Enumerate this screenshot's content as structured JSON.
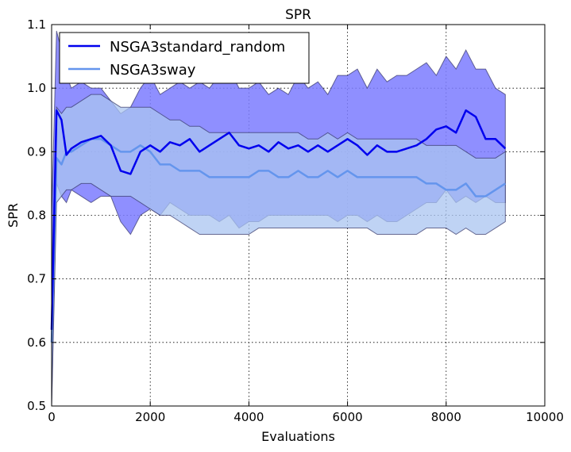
{
  "chart_data": {
    "type": "line",
    "title": "SPR",
    "xlabel": "Evaluations",
    "ylabel": "SPR",
    "xlim": [
      0,
      10000
    ],
    "ylim": [
      0.5,
      1.1
    ],
    "xticks": [
      0,
      2000,
      4000,
      6000,
      8000,
      10000
    ],
    "xtick_labels": [
      "0",
      "2000",
      "4000",
      "6000",
      "8000",
      "10000"
    ],
    "yticks": [
      0.5,
      0.6,
      0.7,
      0.8,
      0.9,
      1.0,
      1.1
    ],
    "ytick_labels": [
      "0.5",
      "0.6",
      "0.7",
      "0.8",
      "0.9",
      "1.0",
      "1.1"
    ],
    "grid": true,
    "legend_position": "top-left",
    "series": [
      {
        "name": "NSGA3standard_random",
        "color": "#0000ee",
        "band_color": "#7b7bff",
        "x": [
          0,
          100,
          200,
          300,
          400,
          600,
          800,
          1000,
          1200,
          1400,
          1600,
          1800,
          2000,
          2200,
          2400,
          2600,
          2800,
          3000,
          3200,
          3400,
          3600,
          3800,
          4000,
          4200,
          4400,
          4600,
          4800,
          5000,
          5200,
          5400,
          5600,
          5800,
          6000,
          6200,
          6400,
          6600,
          6800,
          7000,
          7200,
          7400,
          7600,
          7800,
          8000,
          8200,
          8400,
          8600,
          8800,
          9000,
          9200
        ],
        "y": [
          0.62,
          0.965,
          0.95,
          0.895,
          0.905,
          0.915,
          0.92,
          0.925,
          0.91,
          0.87,
          0.865,
          0.9,
          0.91,
          0.9,
          0.915,
          0.91,
          0.92,
          0.9,
          0.91,
          0.92,
          0.93,
          0.91,
          0.905,
          0.91,
          0.9,
          0.915,
          0.905,
          0.91,
          0.9,
          0.91,
          0.9,
          0.91,
          0.92,
          0.91,
          0.895,
          0.91,
          0.9,
          0.9,
          0.905,
          0.91,
          0.92,
          0.935,
          0.94,
          0.93,
          0.965,
          0.955,
          0.92,
          0.92,
          0.905
        ],
        "lower": [
          0.5,
          0.85,
          0.83,
          0.82,
          0.84,
          0.83,
          0.82,
          0.83,
          0.83,
          0.79,
          0.77,
          0.8,
          0.81,
          0.8,
          0.82,
          0.81,
          0.8,
          0.8,
          0.8,
          0.79,
          0.8,
          0.78,
          0.79,
          0.79,
          0.8,
          0.8,
          0.8,
          0.8,
          0.8,
          0.8,
          0.8,
          0.79,
          0.8,
          0.8,
          0.79,
          0.8,
          0.79,
          0.79,
          0.8,
          0.81,
          0.82,
          0.82,
          0.84,
          0.82,
          0.83,
          0.82,
          0.83,
          0.82,
          0.82
        ],
        "upper": [
          0.8,
          1.09,
          1.06,
          1.02,
          1.0,
          1.01,
          1.0,
          1.0,
          0.98,
          0.96,
          0.97,
          1.0,
          1.02,
          0.99,
          1.0,
          1.01,
          1.0,
          1.01,
          1.0,
          1.02,
          1.03,
          1.0,
          1.0,
          1.01,
          0.99,
          1.0,
          0.99,
          1.02,
          1.0,
          1.01,
          0.99,
          1.02,
          1.02,
          1.03,
          1.0,
          1.03,
          1.01,
          1.02,
          1.02,
          1.03,
          1.04,
          1.02,
          1.05,
          1.03,
          1.06,
          1.03,
          1.03,
          1.0,
          0.99
        ]
      },
      {
        "name": "NSGA3sway",
        "color": "#6495ed",
        "band_color": "#a9c4f0",
        "x": [
          0,
          100,
          200,
          300,
          400,
          600,
          800,
          1000,
          1200,
          1400,
          1600,
          1800,
          2000,
          2200,
          2400,
          2600,
          2800,
          3000,
          3200,
          3400,
          3600,
          3800,
          4000,
          4200,
          4400,
          4600,
          4800,
          5000,
          5200,
          5400,
          5600,
          5800,
          6000,
          6200,
          6400,
          6600,
          6800,
          7000,
          7200,
          7400,
          7600,
          7800,
          8000,
          8200,
          8400,
          8600,
          8800,
          9000,
          9200
        ],
        "y": [
          0.6,
          0.89,
          0.88,
          0.9,
          0.9,
          0.91,
          0.92,
          0.92,
          0.91,
          0.9,
          0.9,
          0.91,
          0.9,
          0.88,
          0.88,
          0.87,
          0.87,
          0.87,
          0.86,
          0.86,
          0.86,
          0.86,
          0.86,
          0.87,
          0.87,
          0.86,
          0.86,
          0.87,
          0.86,
          0.86,
          0.87,
          0.86,
          0.87,
          0.86,
          0.86,
          0.86,
          0.86,
          0.86,
          0.86,
          0.86,
          0.85,
          0.85,
          0.84,
          0.84,
          0.85,
          0.83,
          0.83,
          0.84,
          0.85
        ],
        "lower": [
          0.5,
          0.82,
          0.83,
          0.84,
          0.84,
          0.85,
          0.85,
          0.84,
          0.83,
          0.83,
          0.83,
          0.82,
          0.81,
          0.8,
          0.8,
          0.79,
          0.78,
          0.77,
          0.77,
          0.77,
          0.77,
          0.77,
          0.77,
          0.78,
          0.78,
          0.78,
          0.78,
          0.78,
          0.78,
          0.78,
          0.78,
          0.78,
          0.78,
          0.78,
          0.78,
          0.77,
          0.77,
          0.77,
          0.77,
          0.77,
          0.78,
          0.78,
          0.78,
          0.77,
          0.78,
          0.77,
          0.77,
          0.78,
          0.79
        ],
        "upper": [
          0.7,
          0.97,
          0.96,
          0.97,
          0.97,
          0.98,
          0.99,
          0.99,
          0.98,
          0.97,
          0.97,
          0.97,
          0.97,
          0.96,
          0.95,
          0.95,
          0.94,
          0.94,
          0.93,
          0.93,
          0.93,
          0.93,
          0.93,
          0.93,
          0.93,
          0.93,
          0.93,
          0.93,
          0.92,
          0.92,
          0.93,
          0.92,
          0.93,
          0.92,
          0.92,
          0.92,
          0.92,
          0.92,
          0.92,
          0.92,
          0.91,
          0.91,
          0.91,
          0.91,
          0.9,
          0.89,
          0.89,
          0.89,
          0.9
        ]
      }
    ]
  }
}
